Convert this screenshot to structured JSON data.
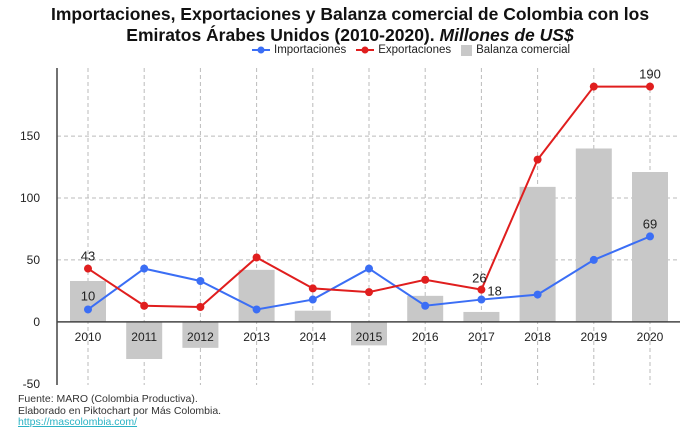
{
  "title_line1": "Importaciones, Exportaciones y Balanza comercial de Colombia con los",
  "title_line2": "Emiratos Árabes Unidos (2010-2020).",
  "title_italic": "Millones de US$",
  "footer": {
    "source": "Fuente: MARO (Colombia Productiva).",
    "made": "Elaborado en Piktochart por Más Colombia.",
    "link": "https://mascolombia.com/"
  },
  "colors": {
    "imports": "#3b6ef5",
    "exports": "#e01e1e",
    "balance": "#c8c8c8"
  },
  "chart_data": {
    "type": "bar+line",
    "title": "Importaciones, Exportaciones y Balanza comercial de Colombia con los Emiratos Árabes Unidos (2010-2020). Millones de US$",
    "categories": [
      "2010",
      "2011",
      "2012",
      "2013",
      "2014",
      "2015",
      "2016",
      "2017",
      "2018",
      "2019",
      "2020"
    ],
    "series": [
      {
        "name": "Importaciones",
        "type": "line",
        "values": [
          10,
          43,
          33,
          10,
          18,
          43,
          13,
          18,
          22,
          50,
          69
        ],
        "labels": {
          "0": "10",
          "7": "18",
          "10": "69"
        }
      },
      {
        "name": "Exportaciones",
        "type": "line",
        "values": [
          43,
          13,
          12,
          52,
          27,
          24,
          34,
          26,
          131,
          190,
          190
        ],
        "labels": {
          "0": "43",
          "7": "26",
          "10": "190"
        }
      },
      {
        "name": "Balanza comercial",
        "type": "bar",
        "values": [
          33,
          -30,
          -21,
          42,
          9,
          -19,
          21,
          8,
          109,
          140,
          121
        ]
      }
    ],
    "yticks": [
      -50,
      0,
      50,
      100,
      150
    ],
    "ylim": [
      -51,
      205
    ],
    "grid": true,
    "legend": "top"
  }
}
